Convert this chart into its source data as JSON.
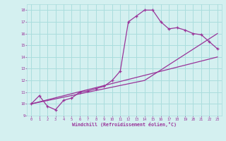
{
  "xlabel": "Windchill (Refroidissement éolien,°C)",
  "bg_color": "#d4f0f0",
  "line_color": "#993399",
  "grid_color": "#aadddd",
  "xlim": [
    -0.5,
    23.5
  ],
  "ylim": [
    9,
    18.5
  ],
  "xticks": [
    0,
    1,
    2,
    3,
    4,
    5,
    6,
    7,
    8,
    9,
    10,
    11,
    12,
    13,
    14,
    15,
    16,
    17,
    18,
    19,
    20,
    21,
    22,
    23
  ],
  "yticks": [
    9,
    10,
    11,
    12,
    13,
    14,
    15,
    16,
    17,
    18
  ],
  "series1_x": [
    0,
    1,
    2,
    3,
    4,
    5,
    6,
    7,
    8,
    9,
    10,
    11,
    12,
    13,
    14,
    15,
    16,
    17,
    18,
    19,
    20,
    21,
    22,
    23
  ],
  "series1_y": [
    10.0,
    10.7,
    9.8,
    9.5,
    10.3,
    10.5,
    11.0,
    11.1,
    11.3,
    11.5,
    12.0,
    12.8,
    17.0,
    17.5,
    18.0,
    18.0,
    17.0,
    16.4,
    16.5,
    16.3,
    16.0,
    15.9,
    15.3,
    14.7
  ],
  "series2_x": [
    0,
    23
  ],
  "series2_y": [
    10.0,
    14.0
  ],
  "series3_x": [
    0,
    14,
    23
  ],
  "series3_y": [
    10.0,
    12.0,
    16.0
  ]
}
